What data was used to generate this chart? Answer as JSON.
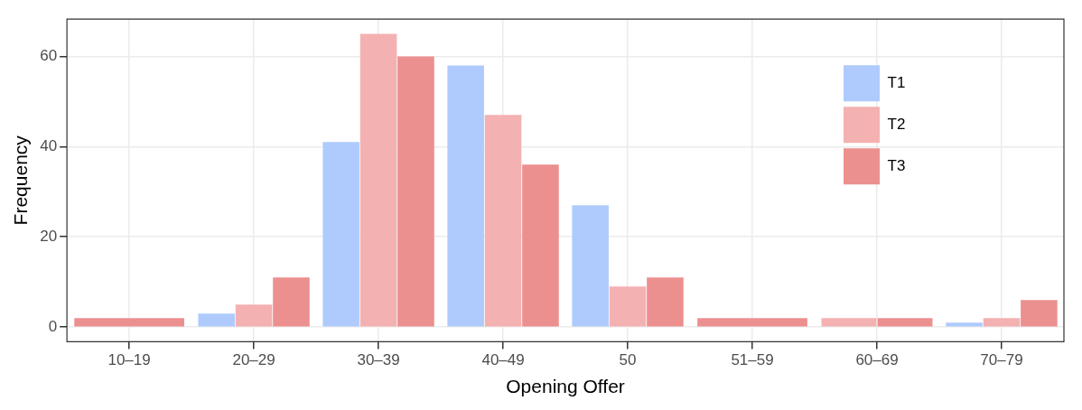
{
  "chart_data": {
    "type": "bar",
    "xlabel": "Opening Offer",
    "ylabel": "Frequency",
    "categories": [
      "10–19",
      "20–29",
      "30–39",
      "40–49",
      "50",
      "51–59",
      "60–69",
      "70–79"
    ],
    "series": [
      {
        "name": "T1",
        "color": "#afcbfd",
        "values": [
          null,
          3,
          41,
          58,
          27,
          null,
          null,
          1
        ]
      },
      {
        "name": "T2",
        "color": "#f4b1b1",
        "values": [
          null,
          5,
          65,
          47,
          9,
          null,
          2,
          2
        ]
      },
      {
        "name": "T3",
        "color": "#ec8f8f",
        "values": [
          2,
          11,
          60,
          36,
          11,
          2,
          2,
          6
        ]
      }
    ],
    "ylim": [
      -3.25,
      68.25
    ],
    "yticks": [
      0,
      20,
      40,
      60
    ],
    "grid": true,
    "legend": "top right"
  }
}
